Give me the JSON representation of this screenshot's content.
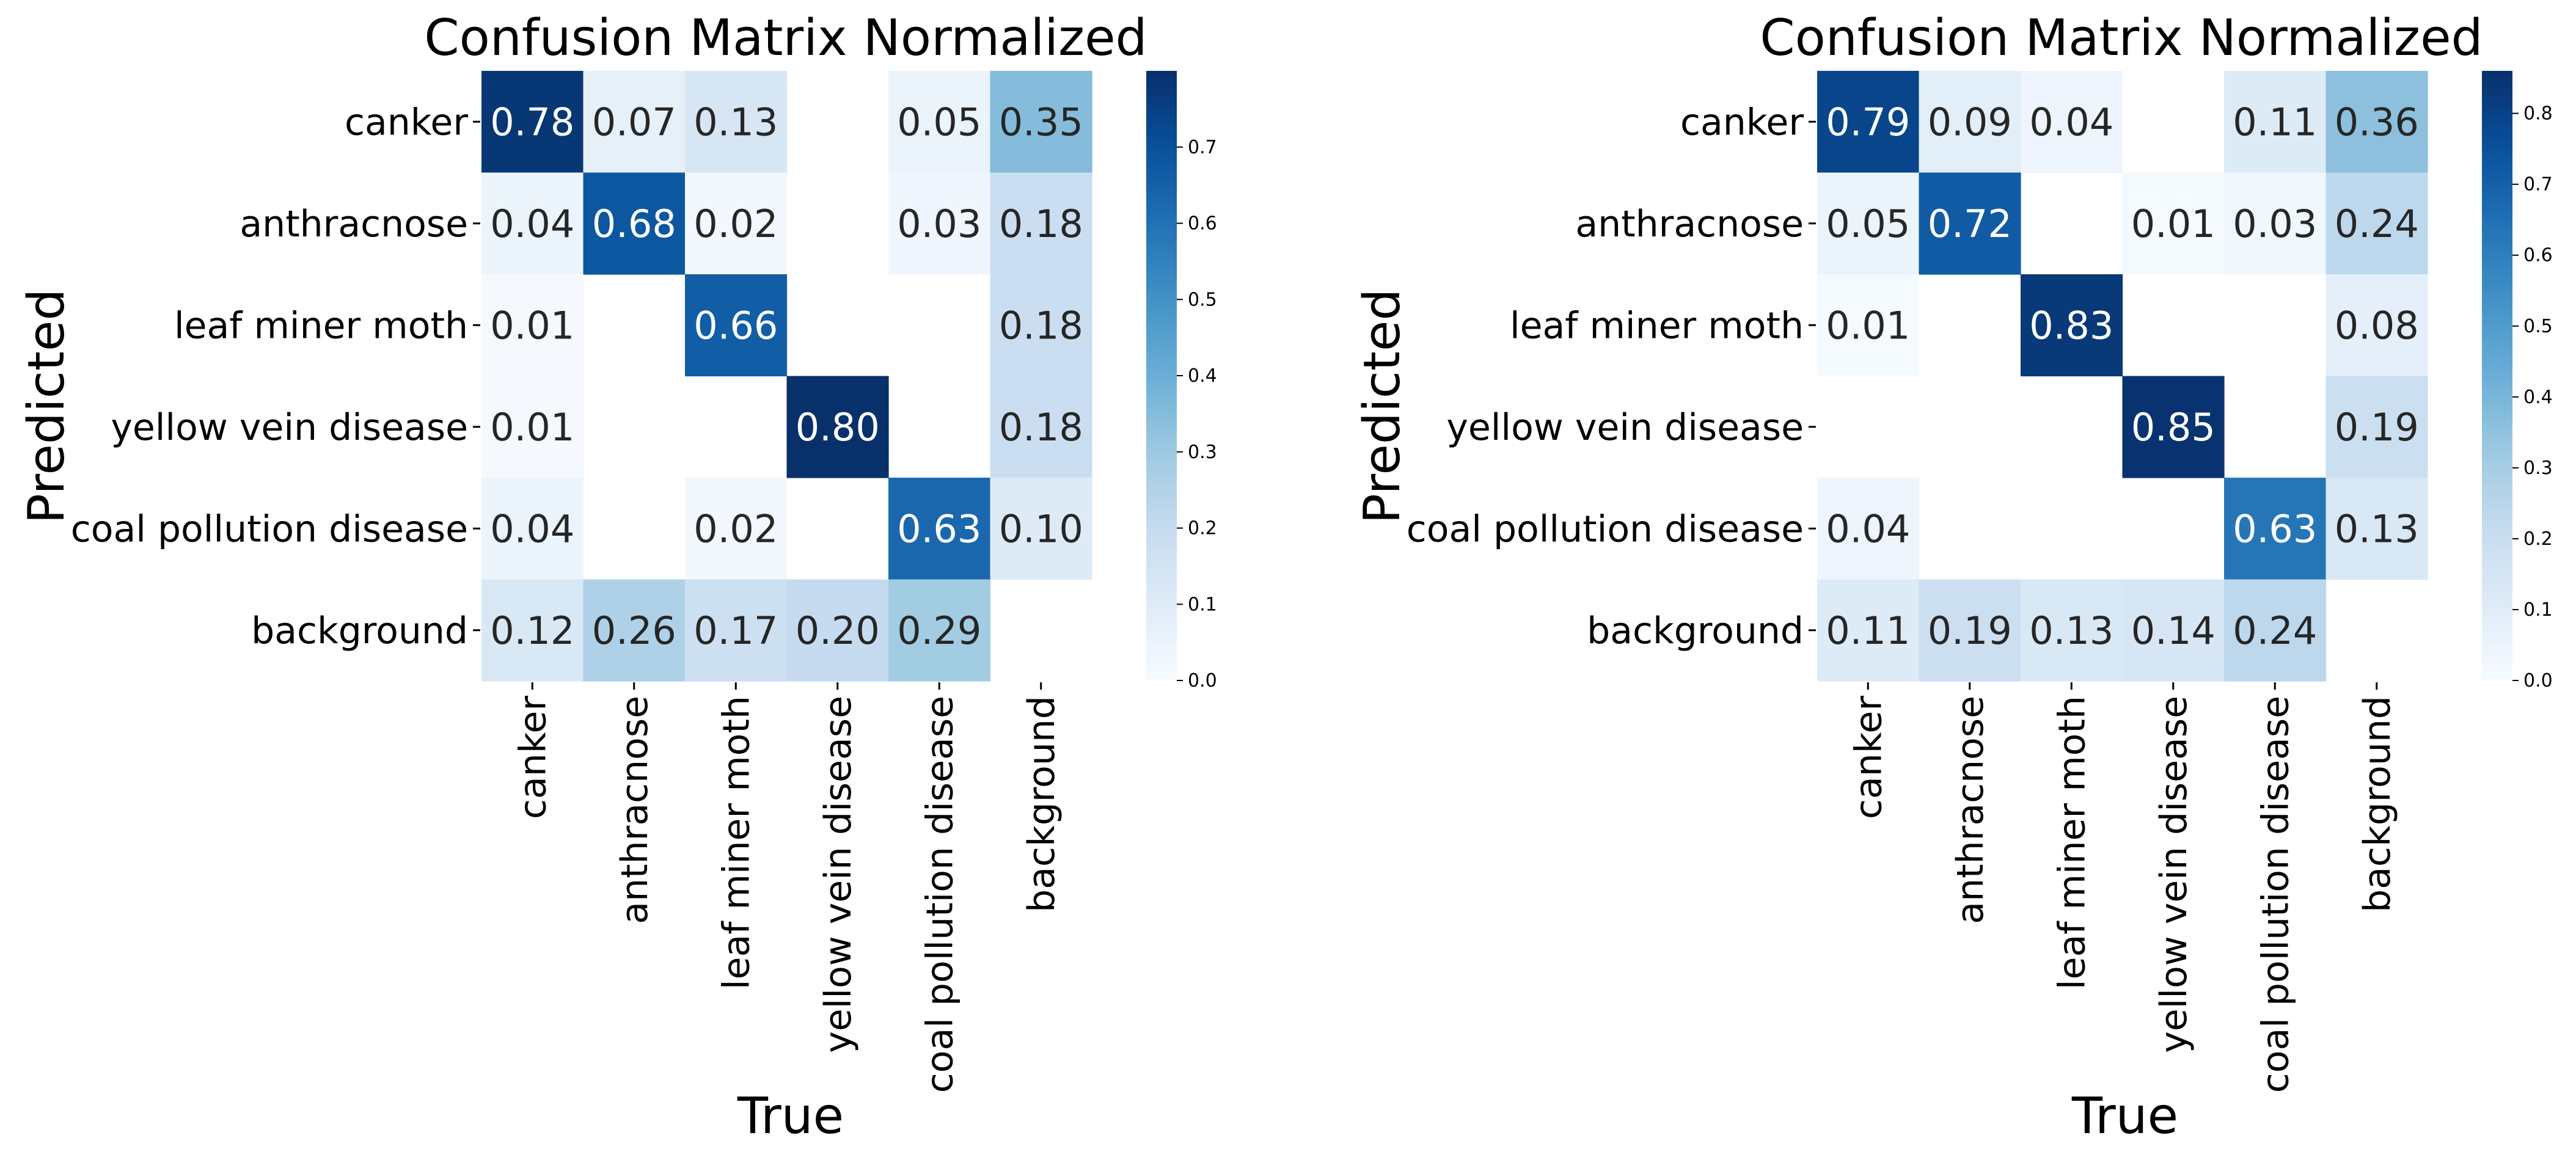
{
  "chart_data": [
    {
      "type": "heatmap",
      "title": "Confusion Matrix Normalized",
      "xlabel": "True",
      "ylabel": "Predicted",
      "x_categories": [
        "canker",
        "anthracnose",
        "leaf miner moth",
        "yellow vein disease",
        "coal pollution disease",
        "background"
      ],
      "y_categories": [
        "canker",
        "anthracnose",
        "leaf miner moth",
        "yellow vein disease",
        "coal pollution disease",
        "background"
      ],
      "values": [
        [
          0.78,
          0.07,
          0.13,
          null,
          0.05,
          0.35
        ],
        [
          0.04,
          0.68,
          0.02,
          null,
          0.03,
          0.18
        ],
        [
          0.01,
          null,
          0.66,
          null,
          null,
          0.18
        ],
        [
          0.01,
          null,
          null,
          0.8,
          null,
          0.18
        ],
        [
          0.04,
          null,
          0.02,
          null,
          0.63,
          0.1
        ],
        [
          0.12,
          0.26,
          0.17,
          0.2,
          0.29,
          null
        ]
      ],
      "labels": [
        [
          "0.78",
          "0.07",
          "0.13",
          "",
          "0.05",
          "0.35"
        ],
        [
          "0.04",
          "0.68",
          "0.02",
          "",
          "0.03",
          "0.18"
        ],
        [
          "0.01",
          "",
          "0.66",
          "",
          "",
          "0.18"
        ],
        [
          "0.01",
          "",
          "",
          "0.80",
          "",
          "0.18"
        ],
        [
          "0.04",
          "",
          "0.02",
          "",
          "0.63",
          "0.10"
        ],
        [
          "0.12",
          "0.26",
          "0.17",
          "0.20",
          "0.29",
          ""
        ]
      ],
      "colorbar": {
        "range": [
          0.0,
          0.8
        ],
        "ticks": [
          0.0,
          0.1,
          0.2,
          0.3,
          0.4,
          0.5,
          0.6,
          0.7
        ],
        "tick_labels": [
          "0.0",
          "0.1",
          "0.2",
          "0.3",
          "0.4",
          "0.5",
          "0.6",
          "0.7"
        ],
        "colormap": "Blues"
      }
    },
    {
      "type": "heatmap",
      "title": "Confusion Matrix Normalized",
      "xlabel": "True",
      "ylabel": "Predicted",
      "x_categories": [
        "canker",
        "anthracnose",
        "leaf miner moth",
        "yellow vein disease",
        "coal pollution disease",
        "background"
      ],
      "y_categories": [
        "canker",
        "anthracnose",
        "leaf miner moth",
        "yellow vein disease",
        "coal pollution disease",
        "background"
      ],
      "values": [
        [
          0.79,
          0.09,
          0.04,
          null,
          0.11,
          0.36
        ],
        [
          0.05,
          0.72,
          null,
          0.01,
          0.03,
          0.24
        ],
        [
          0.01,
          null,
          0.83,
          null,
          null,
          0.08
        ],
        [
          null,
          null,
          null,
          0.85,
          null,
          0.19
        ],
        [
          0.04,
          null,
          null,
          null,
          0.63,
          0.13
        ],
        [
          0.11,
          0.19,
          0.13,
          0.14,
          0.24,
          null
        ]
      ],
      "labels": [
        [
          "0.79",
          "0.09",
          "0.04",
          "",
          "0.11",
          "0.36"
        ],
        [
          "0.05",
          "0.72",
          "",
          "0.01",
          "0.03",
          "0.24"
        ],
        [
          "0.01",
          "",
          "0.83",
          "",
          "",
          "0.08"
        ],
        [
          "",
          "",
          "",
          "0.85",
          "",
          "0.19"
        ],
        [
          "0.04",
          "",
          "",
          "",
          "0.63",
          "0.13"
        ],
        [
          "0.11",
          "0.19",
          "0.13",
          "0.14",
          "0.24",
          ""
        ]
      ],
      "colorbar": {
        "range": [
          0.0,
          0.86
        ],
        "ticks": [
          0.0,
          0.1,
          0.2,
          0.3,
          0.4,
          0.5,
          0.6,
          0.7,
          0.8
        ],
        "tick_labels": [
          "0.0",
          "0.1",
          "0.2",
          "0.3",
          "0.4",
          "0.5",
          "0.6",
          "0.7",
          "0.8"
        ],
        "colormap": "Blues"
      }
    }
  ]
}
